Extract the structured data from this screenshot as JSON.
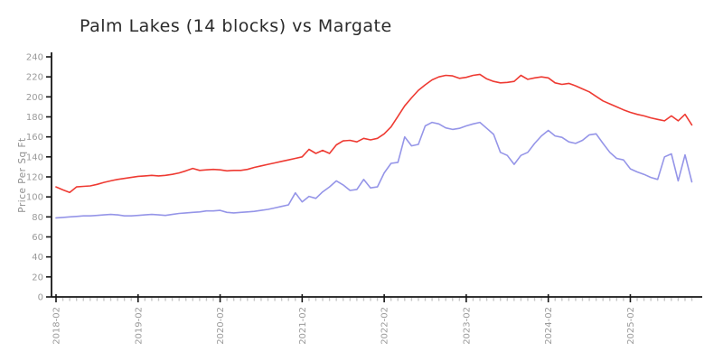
{
  "title": "Palm Lakes (14 blocks) vs Margate",
  "colors": {
    "series_red": "#ee3a32",
    "series_blue": "#9595e8",
    "axis": "#161616",
    "major_tick": "#161616",
    "minor_tick": "#c6c6c6",
    "tick_label": "#9a9a9a",
    "title_text": "#2b2b2b",
    "background": "#ffffff"
  },
  "chart_data": {
    "type": "line",
    "title": "Palm Lakes (14 blocks) vs Margate",
    "xlabel": "",
    "ylabel": "Price Per Sq Ft",
    "ylim": [
      0,
      240
    ],
    "y_ticks": [
      0,
      20,
      40,
      60,
      80,
      100,
      120,
      140,
      160,
      180,
      200,
      220,
      240
    ],
    "x_interval": "monthly",
    "x_start": "2018-02",
    "x_end": "2025-11",
    "x_tick_labels": [
      "2018-02",
      "2019-02",
      "2020-02",
      "2021-02",
      "2022-02",
      "2023-02",
      "2024-02",
      "2025-02"
    ],
    "x_major_tick_every_months": 12,
    "grid": false,
    "legend_position": "none",
    "series": [
      {
        "name": "Palm Lakes (14 blocks)",
        "color": "#ee3a32",
        "values": [
          110,
          107,
          104.5,
          110,
          110.5,
          111,
          112.5,
          114.5,
          116,
          117.5,
          118.5,
          119.5,
          120.5,
          121,
          121.5,
          121,
          121.5,
          122.5,
          124,
          126,
          128.5,
          126.5,
          127,
          127.5,
          127,
          126,
          126.5,
          126.5,
          127.5,
          129.5,
          131,
          132.5,
          134,
          135.5,
          137,
          138.5,
          140,
          147.5,
          143.5,
          146.5,
          143.5,
          152,
          156,
          156.5,
          155,
          158.5,
          157,
          158.5,
          163,
          170,
          180.5,
          191,
          199,
          206.5,
          212,
          217,
          220,
          221.5,
          221,
          218.5,
          219.5,
          221.5,
          222.5,
          218,
          215.5,
          214,
          214.5,
          215.5,
          221.5,
          217.5,
          219,
          220,
          219,
          214,
          212.5,
          213.5,
          211,
          208,
          205,
          200.5,
          196,
          193,
          190,
          187,
          184.5,
          182.5,
          181,
          179,
          177.5,
          176,
          181,
          176,
          182.5,
          172
        ]
      },
      {
        "name": "Margate",
        "color": "#9595e8",
        "values": [
          79,
          79.5,
          80,
          80.5,
          81,
          81,
          81.5,
          82,
          82.5,
          82,
          81,
          81,
          81.5,
          82,
          82.5,
          82,
          81.5,
          82.5,
          83.5,
          84,
          84.5,
          85,
          86,
          86,
          86.5,
          84.5,
          84,
          84.5,
          85,
          85.5,
          86.5,
          87.5,
          89,
          90.5,
          92,
          104,
          95,
          100.5,
          98.5,
          105,
          110,
          116,
          112,
          106.5,
          107.5,
          117.5,
          109,
          110,
          124,
          133.5,
          134.5,
          160,
          151,
          152.5,
          171,
          174.5,
          173,
          169,
          167.5,
          168.5,
          171,
          173,
          174.5,
          168.5,
          162.5,
          144.5,
          141.5,
          132.5,
          141.5,
          144.5,
          153.5,
          161,
          166.5,
          161,
          159.5,
          155,
          153.5,
          156.5,
          162,
          163,
          153.5,
          144.5,
          138.5,
          137,
          128,
          125,
          122.5,
          119.5,
          117.5,
          140,
          143,
          116,
          142,
          115
        ]
      }
    ]
  }
}
